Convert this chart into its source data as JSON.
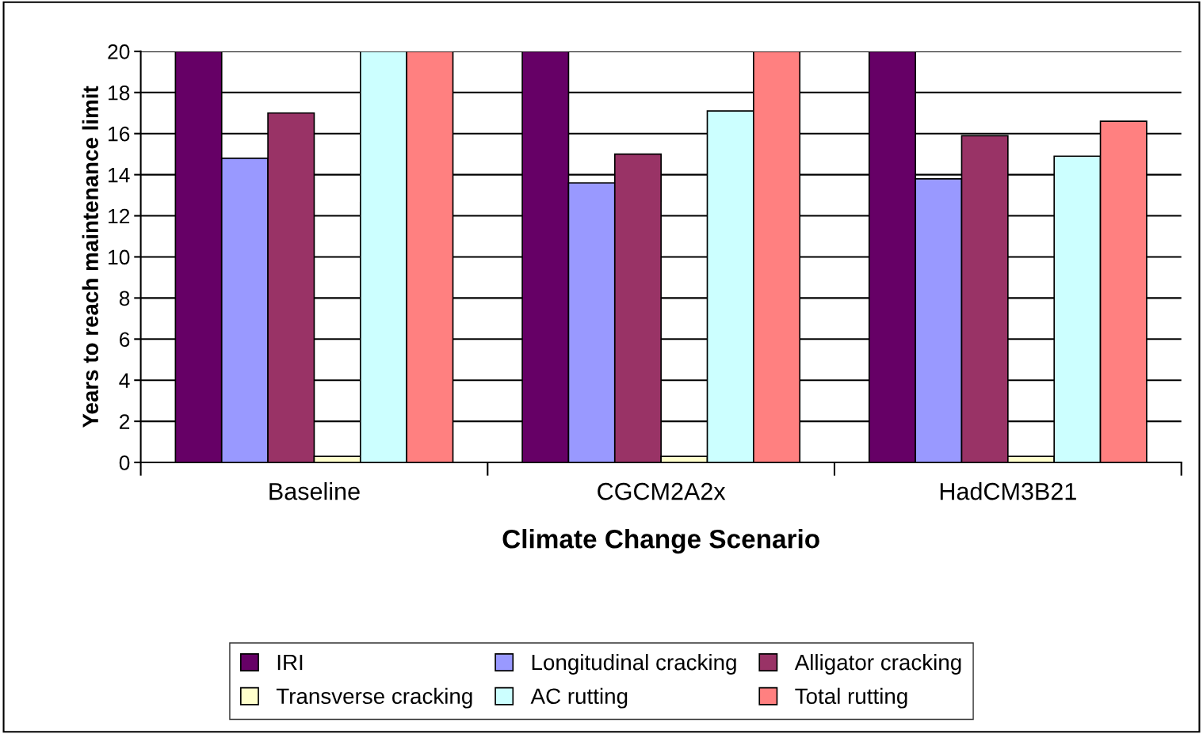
{
  "chart_data": {
    "type": "bar",
    "xlabel": "Climate Change Scenario",
    "ylabel": "Years to reach maintenance limit",
    "categories": [
      "Baseline",
      "CGCM2A2x",
      "HadCM3B21"
    ],
    "series": [
      {
        "name": "IRI",
        "color": "#660066",
        "values": [
          20,
          20,
          20
        ]
      },
      {
        "name": "Longitudinal cracking",
        "color": "#9999ff",
        "values": [
          14.8,
          13.6,
          13.8
        ]
      },
      {
        "name": "Alligator cracking",
        "color": "#993366",
        "values": [
          17.0,
          15.0,
          15.9
        ]
      },
      {
        "name": "Transverse cracking",
        "color": "#ffffcc",
        "values": [
          0.3,
          0.3,
          0.3
        ]
      },
      {
        "name": "AC rutting",
        "color": "#ccffff",
        "values": [
          20,
          17.1,
          14.9
        ]
      },
      {
        "name": "Total rutting",
        "color": "#ff8080",
        "values": [
          20,
          20,
          16.6
        ]
      }
    ],
    "ylim": [
      0,
      20
    ],
    "yticks": [
      0,
      2,
      4,
      6,
      8,
      10,
      12,
      14,
      16,
      18,
      20
    ],
    "grid": "y",
    "legend": "bottom"
  }
}
